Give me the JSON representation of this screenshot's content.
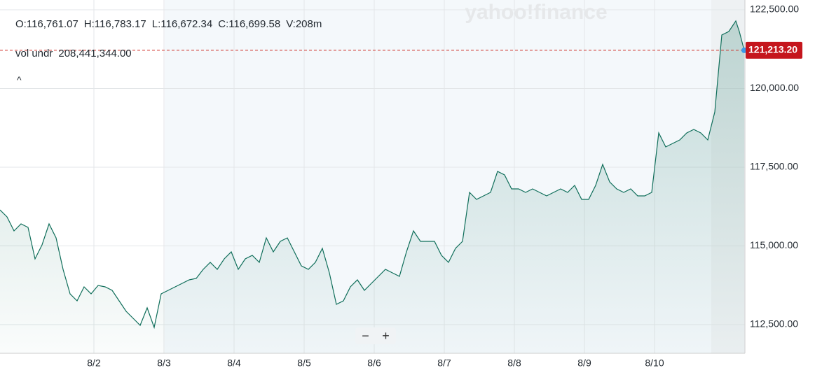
{
  "header": {
    "open": "O:116,761.07",
    "high": "H:116,783.17",
    "low": "L:116,672.34",
    "close": "C:116,699.58",
    "volume": "V:208m",
    "indicator_name": "vol undr",
    "indicator_value": "208,441,344.00",
    "watermark": "yahoo!finance",
    "zoom_out": "−",
    "zoom_in": "+",
    "collapse": "^"
  },
  "chart_data": {
    "type": "line",
    "color": "#0f6e5a",
    "grid": true,
    "x": [
      0.66,
      0.76,
      0.86,
      0.96,
      1.06,
      1.16,
      1.26,
      1.36,
      1.46,
      1.56,
      1.66,
      1.76,
      1.86,
      1.96,
      2.06,
      2.16,
      2.26,
      2.36,
      2.46,
      2.56,
      2.66,
      2.76,
      2.86,
      2.96,
      3.06,
      3.16,
      3.26,
      3.36,
      3.46,
      3.56,
      3.66,
      3.76,
      3.86,
      3.96,
      4.06,
      4.16,
      4.26,
      4.36,
      4.46,
      4.56,
      4.66,
      4.76,
      4.86,
      4.96,
      5.06,
      5.16,
      5.26,
      5.36,
      5.46,
      5.56,
      5.66,
      5.76,
      5.86,
      5.96,
      6.06,
      6.16,
      6.26,
      6.36,
      6.46,
      6.56,
      6.66,
      6.76,
      6.86,
      6.96,
      7.06,
      7.16,
      7.26,
      7.36,
      7.46,
      7.56,
      7.66,
      7.76,
      7.86,
      7.96,
      8.06,
      8.16,
      8.26,
      8.36,
      8.46,
      8.56,
      8.66,
      8.76,
      8.86,
      8.96,
      9.06,
      9.16,
      9.26,
      9.36,
      9.46,
      9.56,
      9.66,
      9.76,
      9.86,
      9.96,
      10.06,
      10.16,
      10.26,
      10.36,
      10.46,
      10.56,
      10.66,
      10.76,
      10.86,
      10.96,
      11.06,
      11.16,
      11.21,
      11.28
    ],
    "values": [
      116144,
      115922,
      115478,
      115700,
      115589,
      114589,
      115033,
      115700,
      115256,
      114256,
      113478,
      113256,
      113700,
      113478,
      113744,
      113700,
      113589,
      113256,
      112922,
      112700,
      112478,
      113033,
      112411,
      113478,
      113589,
      113700,
      113811,
      113922,
      113967,
      114256,
      114478,
      114256,
      114589,
      114811,
      114256,
      114589,
      114700,
      114478,
      115256,
      114811,
      115144,
      115256,
      114811,
      114367,
      114256,
      114478,
      114922,
      114144,
      113144,
      113256,
      113700,
      113922,
      113589,
      113811,
      114033,
      114256,
      114144,
      114033,
      114811,
      115478,
      115144,
      115144,
      115144,
      114700,
      114478,
      114922,
      115144,
      116700,
      116478,
      116589,
      116700,
      117367,
      117256,
      116811,
      116811,
      116700,
      116811,
      116700,
      116589,
      116700,
      116811,
      116700,
      116922,
      116478,
      116478,
      116922,
      117589,
      117033,
      116811,
      116700,
      116811,
      116589,
      116589,
      116700,
      118589,
      118144,
      118256,
      118367,
      118589,
      118700,
      118589,
      118367,
      119256,
      121700,
      121811,
      122144,
      121811,
      121213.2
    ],
    "last_price": {
      "value": 121213.2,
      "label": "121,213.20"
    },
    "xlim": [
      0.66,
      11.29
    ],
    "xticks": [
      {
        "value": 2,
        "label": "8/2"
      },
      {
        "value": 3,
        "label": "8/3"
      },
      {
        "value": 4,
        "label": "8/4"
      },
      {
        "value": 5,
        "label": "8/5"
      },
      {
        "value": 6,
        "label": "8/6"
      },
      {
        "value": 7,
        "label": "8/7"
      },
      {
        "value": 8,
        "label": "8/8"
      },
      {
        "value": 9,
        "label": "8/9"
      },
      {
        "value": 10,
        "label": "8/10"
      }
    ],
    "ylim": [
      111589,
      122811
    ],
    "yticks": [
      {
        "value": 112500,
        "label": "112,500.00"
      },
      {
        "value": 115000,
        "label": "115,000.00"
      },
      {
        "value": 117500,
        "label": "117,500.00"
      },
      {
        "value": 120000,
        "label": "120,000.00"
      },
      {
        "value": 122500,
        "label": "122,500.00"
      }
    ]
  }
}
